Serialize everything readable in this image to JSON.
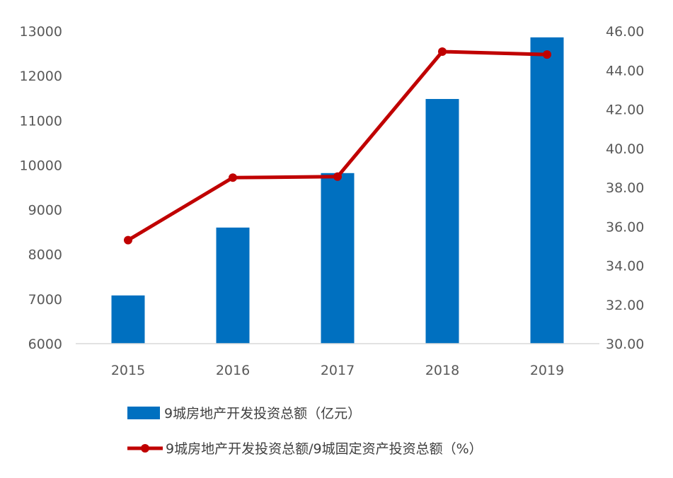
{
  "chart_data": {
    "type": "bar",
    "categories": [
      "2015",
      "2016",
      "2017",
      "2018",
      "2019"
    ],
    "series": [
      {
        "name": "9城房地产开发投资总额（亿元）",
        "type": "bar",
        "axis": "left",
        "color": "#0070C0",
        "values": [
          7080,
          8600,
          9820,
          11480,
          12860
        ]
      },
      {
        "name": "9城房地产开发投资总额/9城固定资产投资总额（%）",
        "type": "line",
        "axis": "right",
        "color": "#C00000",
        "values": [
          35.3,
          38.5,
          38.55,
          44.95,
          44.8
        ]
      }
    ],
    "y_left": {
      "min": 6000,
      "max": 13000,
      "ticks": [
        "6000",
        "7000",
        "8000",
        "9000",
        "10000",
        "11000",
        "12000",
        "13000"
      ]
    },
    "y_right": {
      "min": 30,
      "max": 46,
      "ticks": [
        "30.00",
        "32.00",
        "34.00",
        "36.00",
        "38.00",
        "40.00",
        "42.00",
        "44.00",
        "46.00"
      ]
    },
    "grid": false,
    "legend_position": "bottom"
  }
}
